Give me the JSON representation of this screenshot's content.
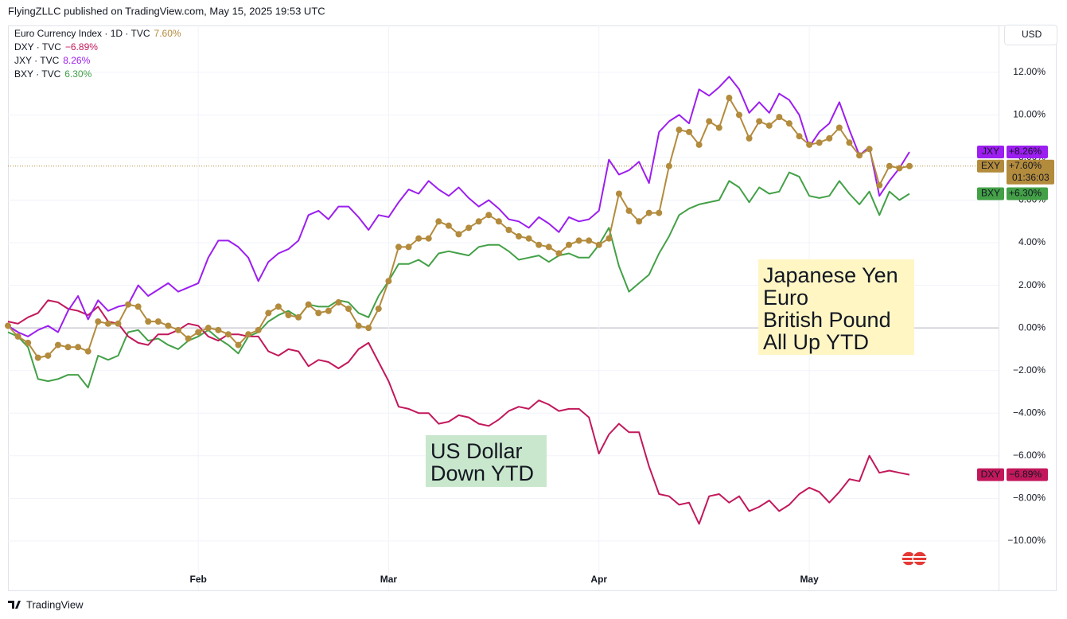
{
  "header": "FlyingZLLC published on TradingView.com, May 15, 2025 19:53 UTC",
  "currency_button": "USD",
  "footer": "TradingView",
  "chart_data": {
    "type": "line",
    "categories": [
      null,
      null,
      null,
      null,
      null,
      null,
      null,
      null,
      null,
      null,
      null,
      null,
      null,
      null,
      null,
      null,
      null,
      null,
      null,
      "Feb",
      null,
      null,
      null,
      null,
      null,
      null,
      null,
      null,
      null,
      null,
      null,
      null,
      null,
      null,
      null,
      null,
      null,
      null,
      "Mar",
      null,
      null,
      null,
      null,
      null,
      null,
      null,
      null,
      null,
      null,
      null,
      null,
      null,
      null,
      null,
      null,
      null,
      null,
      null,
      null,
      "Apr",
      null,
      null,
      null,
      null,
      null,
      null,
      null,
      null,
      null,
      null,
      null,
      null,
      null,
      null,
      null,
      null,
      null,
      null,
      null,
      null,
      "May",
      null,
      null,
      null,
      null,
      null,
      null,
      null,
      null,
      null,
      null
    ],
    "ylim": [
      -11.2,
      14.2
    ],
    "yticks": [
      {
        "value": 12,
        "label": "12.00%"
      },
      {
        "value": 10,
        "label": "10.00%"
      },
      {
        "value": 8,
        "label": "8.00%"
      },
      {
        "value": 6,
        "label": "6.00%"
      },
      {
        "value": 4,
        "label": "4.00%"
      },
      {
        "value": 2,
        "label": "2.00%"
      },
      {
        "value": 0,
        "label": "0.00%"
      },
      {
        "value": -2,
        "label": "−2.00%"
      },
      {
        "value": -4,
        "label": "−4.00%"
      },
      {
        "value": -6,
        "label": "−6.00%"
      },
      {
        "value": -8,
        "label": "−8.00%"
      },
      {
        "value": -10,
        "label": "−10.00%"
      }
    ],
    "grid": true,
    "series": [
      {
        "name": "Euro Currency Index · 1D · TVC",
        "legend_label": "7.60%",
        "ticker": "EXY",
        "badge_label": "+7.60%",
        "countdown": "01:36:03",
        "color": "#b38b3d",
        "markers": true,
        "values": [
          0.1,
          -0.4,
          -0.7,
          -1.4,
          -1.3,
          -0.8,
          -0.9,
          -0.9,
          -1.1,
          0.3,
          0.2,
          0.2,
          1.1,
          1.0,
          0.3,
          0.3,
          0.1,
          -0.1,
          -0.5,
          -0.2,
          0.0,
          -0.1,
          -0.3,
          -0.8,
          -0.3,
          -0.1,
          0.7,
          1.0,
          0.6,
          0.5,
          1.1,
          0.7,
          0.8,
          1.2,
          0.9,
          0.1,
          0.0,
          0.9,
          2.2,
          3.8,
          3.8,
          4.2,
          4.2,
          5.0,
          4.8,
          4.4,
          4.7,
          5.0,
          5.3,
          5.0,
          4.6,
          4.3,
          4.2,
          3.9,
          3.8,
          3.5,
          3.9,
          4.1,
          4.1,
          3.9,
          4.2,
          6.3,
          5.5,
          5.0,
          5.4,
          5.4,
          7.6,
          9.3,
          9.2,
          8.6,
          9.7,
          9.4,
          10.8,
          10.0,
          8.9,
          9.7,
          9.5,
          9.9,
          9.6,
          9.0,
          8.6,
          8.7,
          8.9,
          9.4,
          8.7,
          8.1,
          8.4,
          6.7,
          7.6,
          7.5,
          7.6
        ]
      },
      {
        "name": "DXY · TVC",
        "legend_label": "−6.89%",
        "ticker": "DXY",
        "badge_label": "−6.89%",
        "color": "#c2185b",
        "markers": false,
        "values": [
          0.3,
          0.2,
          0.5,
          0.7,
          1.3,
          1.2,
          0.9,
          0.8,
          0.6,
          1.0,
          0.3,
          0.2,
          -0.4,
          -0.7,
          -0.8,
          -0.3,
          -0.3,
          -0.1,
          0.2,
          0.1,
          -0.4,
          -0.6,
          -0.3,
          -0.3,
          -0.4,
          -0.4,
          -1.1,
          -1.3,
          -1.0,
          -1.1,
          -1.8,
          -1.5,
          -1.6,
          -1.9,
          -1.6,
          -1.0,
          -0.7,
          -1.6,
          -2.5,
          -3.7,
          -3.8,
          -4.0,
          -4.0,
          -4.5,
          -4.4,
          -4.1,
          -4.2,
          -4.5,
          -4.6,
          -4.3,
          -3.9,
          -3.7,
          -3.8,
          -3.4,
          -3.6,
          -3.9,
          -3.8,
          -3.8,
          -4.2,
          -5.9,
          -5.0,
          -4.5,
          -4.9,
          -4.9,
          -6.5,
          -7.8,
          -7.9,
          -8.3,
          -8.2,
          -9.2,
          -7.9,
          -7.8,
          -8.2,
          -7.9,
          -8.6,
          -8.4,
          -8.1,
          -8.6,
          -8.3,
          -7.8,
          -7.5,
          -7.7,
          -8.2,
          -7.7,
          -7.1,
          -7.2,
          -6.0,
          -6.8,
          -6.7,
          -6.8,
          -6.89
        ]
      },
      {
        "name": "JXY · TVC",
        "legend_label": "8.26%",
        "ticker": "JXY",
        "badge_label": "+8.26%",
        "color": "#9c1ef0",
        "markers": false,
        "values": [
          0.1,
          -0.2,
          -0.4,
          -0.1,
          0.1,
          -0.2,
          0.8,
          1.5,
          0.4,
          1.3,
          0.8,
          1.0,
          1.1,
          2.0,
          1.5,
          1.8,
          2.1,
          1.7,
          1.9,
          2.1,
          3.3,
          4.1,
          4.1,
          3.8,
          3.3,
          2.2,
          3.1,
          3.5,
          3.7,
          4.1,
          5.3,
          5.5,
          5.1,
          5.7,
          5.7,
          5.2,
          4.6,
          5.3,
          5.2,
          5.9,
          6.5,
          6.3,
          6.9,
          6.5,
          6.2,
          6.6,
          6.1,
          5.7,
          6.0,
          5.6,
          5.1,
          5.0,
          4.7,
          5.2,
          4.9,
          4.5,
          5.2,
          5.0,
          5.1,
          5.5,
          7.9,
          7.2,
          7.4,
          7.8,
          6.8,
          9.2,
          9.7,
          10.0,
          9.6,
          11.2,
          10.9,
          11.3,
          11.8,
          11.2,
          10.1,
          10.6,
          10.1,
          11.0,
          10.7,
          10.0,
          8.5,
          9.2,
          9.6,
          10.6,
          9.3,
          8.1,
          8.5,
          6.2,
          6.9,
          7.5,
          8.26
        ]
      },
      {
        "name": "BXY · TVC",
        "legend_label": "6.30%",
        "ticker": "BXY",
        "badge_label": "+6.30%",
        "color": "#43a047",
        "markers": false,
        "values": [
          -0.2,
          -0.4,
          -0.9,
          -2.4,
          -2.5,
          -2.4,
          -2.2,
          -2.2,
          -2.8,
          -1.3,
          -1.5,
          -1.3,
          -0.2,
          -0.1,
          -0.6,
          -0.5,
          -0.8,
          -1.0,
          -0.6,
          -0.4,
          -0.1,
          -0.5,
          -0.8,
          -1.2,
          -0.4,
          -0.2,
          0.3,
          0.6,
          0.8,
          0.5,
          1.1,
          1.0,
          1.0,
          1.3,
          1.2,
          0.7,
          0.5,
          1.5,
          2.2,
          3.0,
          3.0,
          3.2,
          2.9,
          3.5,
          3.6,
          3.5,
          3.4,
          3.8,
          3.9,
          3.9,
          3.6,
          3.2,
          3.3,
          3.4,
          3.1,
          3.4,
          3.5,
          3.3,
          3.3,
          3.9,
          4.7,
          2.9,
          1.7,
          2.1,
          2.5,
          3.5,
          4.3,
          5.3,
          5.6,
          5.8,
          5.9,
          6.0,
          6.9,
          6.6,
          5.9,
          6.6,
          6.3,
          6.4,
          7.3,
          7.1,
          6.2,
          6.1,
          6.2,
          6.9,
          6.3,
          5.8,
          6.4,
          5.3,
          6.4,
          6.0,
          6.3
        ]
      }
    ],
    "annotations": [
      {
        "lines": [
          "Japanese Yen",
          "Euro",
          "British Pound",
          "All Up YTD"
        ],
        "background": "#fff6c4"
      },
      {
        "lines": [
          "US Dollar",
          "Down YTD"
        ],
        "background": "#c9e7cc"
      }
    ]
  }
}
